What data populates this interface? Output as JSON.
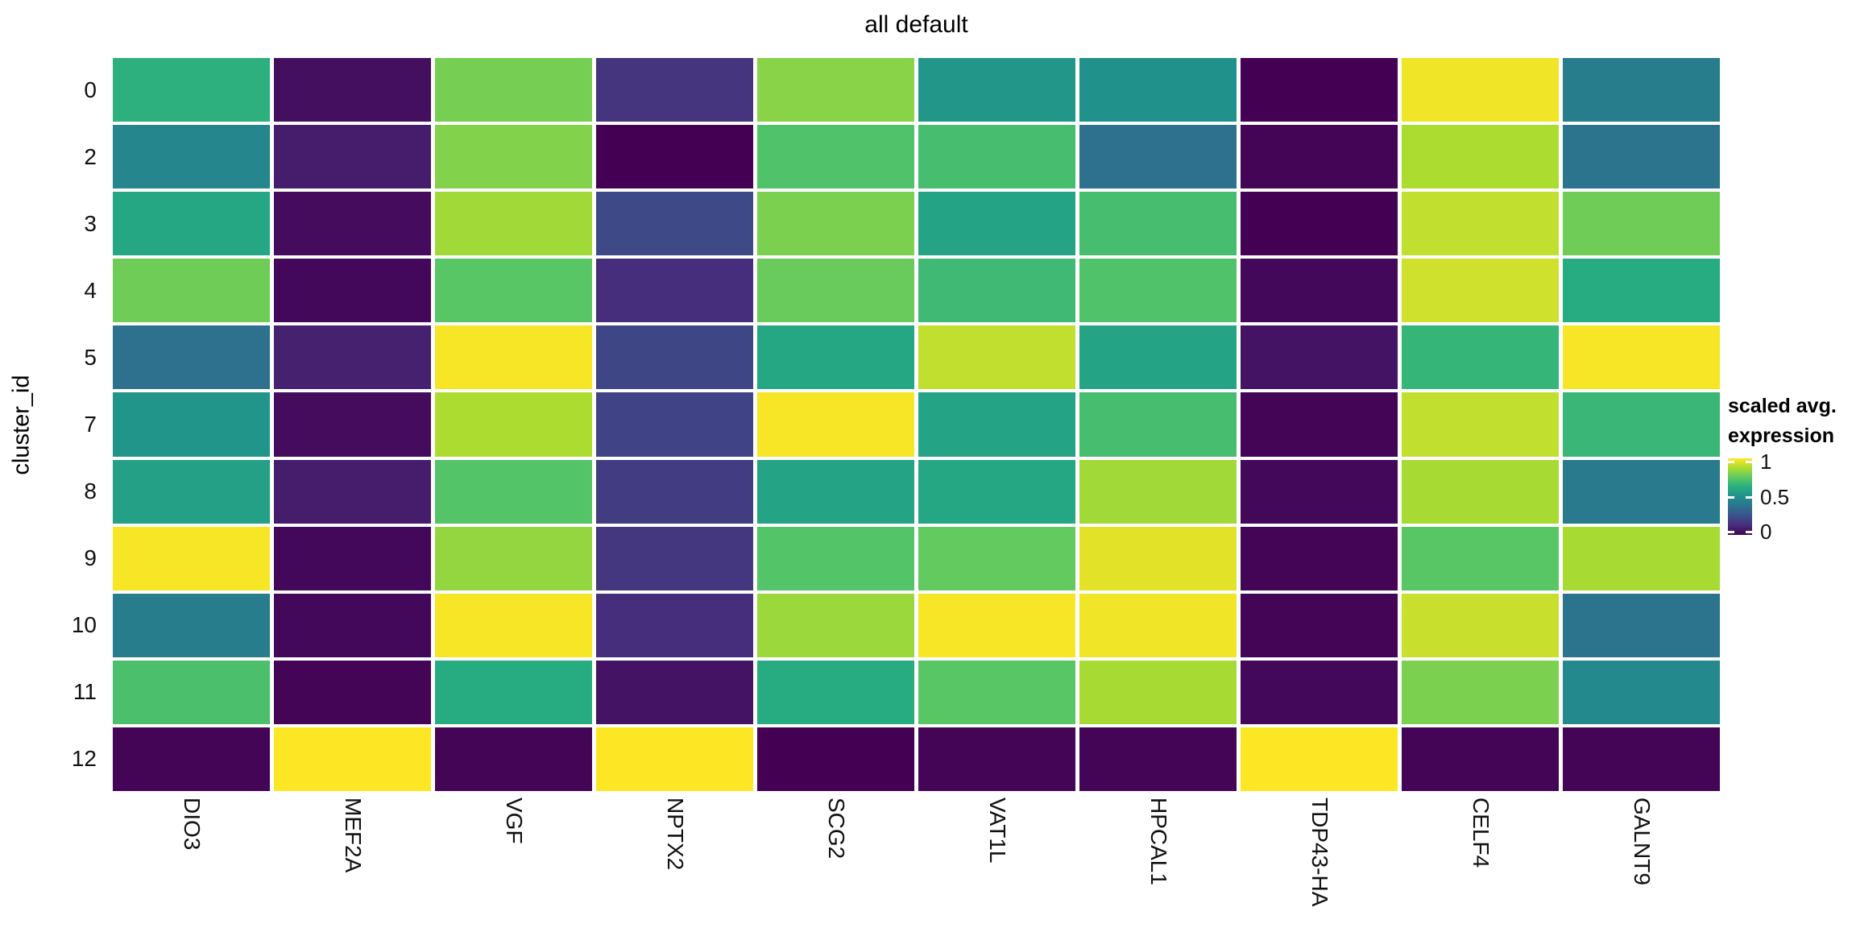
{
  "title": "all default",
  "y_axis": {
    "title": "cluster_id",
    "tick_labels": [
      "0",
      "2",
      "3",
      "4",
      "5",
      "7",
      "8",
      "9",
      "10",
      "11",
      "12"
    ]
  },
  "x_axis": {
    "tick_labels": [
      "DIO3",
      "MEF2A",
      "VGF",
      "NPTX2",
      "SCG2",
      "VAT1L",
      "HPCAL1",
      "TDP43-HA",
      "CELF4",
      "GALNT9"
    ]
  },
  "legend": {
    "title_line1": "scaled avg.",
    "title_line2": "expression",
    "ticks": [
      {
        "label": "1",
        "value": 1.0
      },
      {
        "label": "0.5",
        "value": 0.5
      },
      {
        "label": "0",
        "value": 0.0
      }
    ]
  },
  "chart_data": {
    "type": "heatmap",
    "title": "all default",
    "ylabel": "cluster_id",
    "xlabel": "",
    "legend_title": "scaled avg. expression",
    "x": [
      "DIO3",
      "MEF2A",
      "VGF",
      "NPTX2",
      "SCG2",
      "VAT1L",
      "HPCAL1",
      "TDP43-HA",
      "CELF4",
      "GALNT9"
    ],
    "y": [
      "0",
      "2",
      "3",
      "4",
      "5",
      "7",
      "8",
      "9",
      "10",
      "11",
      "12"
    ],
    "color_scale": {
      "name": "viridis",
      "domain": [
        0,
        1
      ],
      "bar_range": [
        -0.05,
        1.05
      ],
      "stops": [
        [
          0.0,
          "#440154"
        ],
        [
          0.125,
          "#472D7B"
        ],
        [
          0.25,
          "#3B528B"
        ],
        [
          0.375,
          "#2C728E"
        ],
        [
          0.5,
          "#21908C"
        ],
        [
          0.625,
          "#27AD81"
        ],
        [
          0.75,
          "#5DC863"
        ],
        [
          0.875,
          "#AADC32"
        ],
        [
          1.0,
          "#FDE725"
        ]
      ]
    },
    "values": [
      [
        0.64,
        0.04,
        0.79,
        0.15,
        0.82,
        0.53,
        0.51,
        0.0,
        0.98,
        0.42
      ],
      [
        0.46,
        0.08,
        0.81,
        0.0,
        0.72,
        0.7,
        0.37,
        0.01,
        0.88,
        0.38
      ],
      [
        0.6,
        0.03,
        0.86,
        0.22,
        0.8,
        0.58,
        0.7,
        0.0,
        0.91,
        0.78
      ],
      [
        0.78,
        0.02,
        0.74,
        0.13,
        0.77,
        0.68,
        0.72,
        0.02,
        0.93,
        0.62
      ],
      [
        0.37,
        0.09,
        0.99,
        0.21,
        0.6,
        0.91,
        0.58,
        0.05,
        0.66,
        0.99
      ],
      [
        0.52,
        0.03,
        0.88,
        0.2,
        0.99,
        0.58,
        0.7,
        0.01,
        0.91,
        0.67
      ],
      [
        0.57,
        0.08,
        0.73,
        0.18,
        0.58,
        0.6,
        0.86,
        0.02,
        0.87,
        0.41
      ],
      [
        0.99,
        0.02,
        0.84,
        0.16,
        0.73,
        0.76,
        0.96,
        0.01,
        0.74,
        0.87
      ],
      [
        0.42,
        0.02,
        0.99,
        0.13,
        0.85,
        0.99,
        0.98,
        0.01,
        0.92,
        0.38
      ],
      [
        0.71,
        0.01,
        0.62,
        0.05,
        0.62,
        0.74,
        0.87,
        0.02,
        0.8,
        0.47
      ],
      [
        0.01,
        1.0,
        0.01,
        1.0,
        0.0,
        0.01,
        0.01,
        1.0,
        0.01,
        0.01
      ]
    ]
  }
}
